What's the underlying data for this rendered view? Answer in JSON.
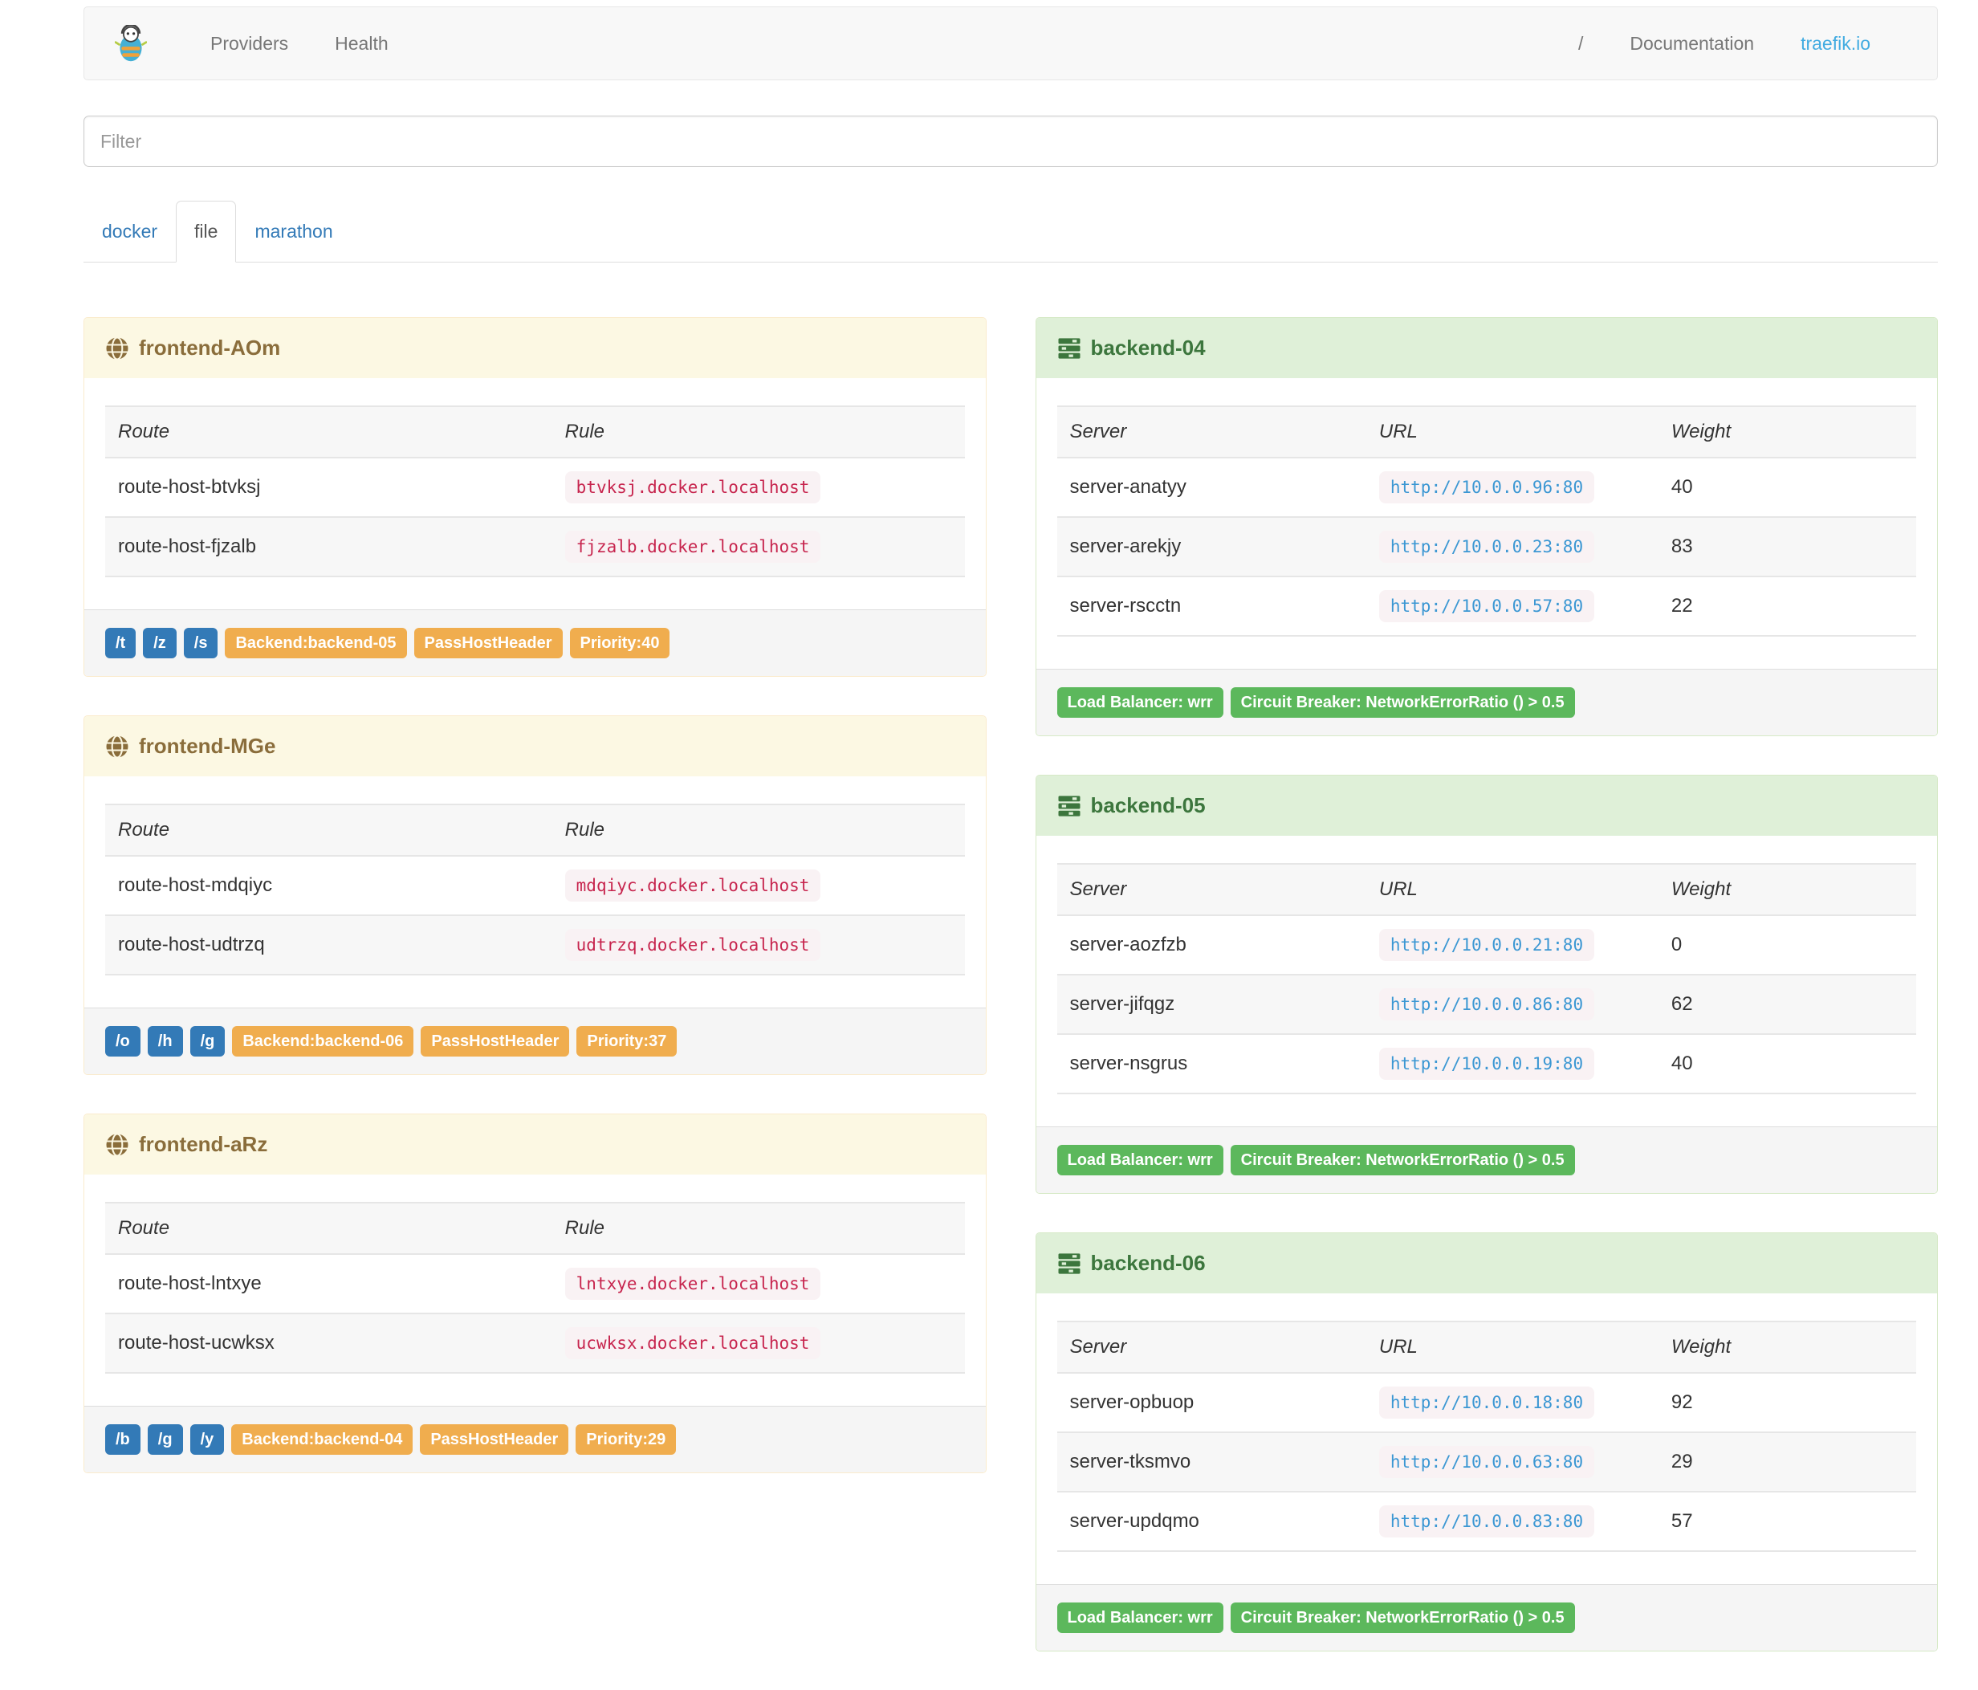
{
  "navbar": {
    "left_links": [
      "Providers",
      "Health"
    ],
    "right_links": [
      "/",
      "Documentation",
      "traefik.io"
    ]
  },
  "filter": {
    "placeholder": "Filter"
  },
  "tabs": [
    {
      "label": "docker",
      "active": false
    },
    {
      "label": "file",
      "active": true
    },
    {
      "label": "marathon",
      "active": false
    }
  ],
  "frontend_table_headers": [
    "Route",
    "Rule"
  ],
  "backend_table_headers": [
    "Server",
    "URL",
    "Weight"
  ],
  "frontends": [
    {
      "name": "frontend-AOm",
      "routes": [
        {
          "route": "route-host-btvksj",
          "rule": "btvksj.docker.localhost"
        },
        {
          "route": "route-host-fjzalb",
          "rule": "fjzalb.docker.localhost"
        }
      ],
      "entrypoints": [
        "/t",
        "/z",
        "/s"
      ],
      "tags": [
        "Backend:backend-05",
        "PassHostHeader",
        "Priority:40"
      ]
    },
    {
      "name": "frontend-MGe",
      "routes": [
        {
          "route": "route-host-mdqiyc",
          "rule": "mdqiyc.docker.localhost"
        },
        {
          "route": "route-host-udtrzq",
          "rule": "udtrzq.docker.localhost"
        }
      ],
      "entrypoints": [
        "/o",
        "/h",
        "/g"
      ],
      "tags": [
        "Backend:backend-06",
        "PassHostHeader",
        "Priority:37"
      ]
    },
    {
      "name": "frontend-aRz",
      "routes": [
        {
          "route": "route-host-lntxye",
          "rule": "lntxye.docker.localhost"
        },
        {
          "route": "route-host-ucwksx",
          "rule": "ucwksx.docker.localhost"
        }
      ],
      "entrypoints": [
        "/b",
        "/g",
        "/y"
      ],
      "tags": [
        "Backend:backend-04",
        "PassHostHeader",
        "Priority:29"
      ]
    }
  ],
  "backends": [
    {
      "name": "backend-04",
      "servers": [
        {
          "server": "server-anatyy",
          "url": "http://10.0.0.96:80",
          "weight": "40"
        },
        {
          "server": "server-arekjy",
          "url": "http://10.0.0.23:80",
          "weight": "83"
        },
        {
          "server": "server-rscctn",
          "url": "http://10.0.0.57:80",
          "weight": "22"
        }
      ],
      "tags": [
        "Load Balancer: wrr",
        "Circuit Breaker: NetworkErrorRatio () > 0.5"
      ]
    },
    {
      "name": "backend-05",
      "servers": [
        {
          "server": "server-aozfzb",
          "url": "http://10.0.0.21:80",
          "weight": "0"
        },
        {
          "server": "server-jifqgz",
          "url": "http://10.0.0.86:80",
          "weight": "62"
        },
        {
          "server": "server-nsgrus",
          "url": "http://10.0.0.19:80",
          "weight": "40"
        }
      ],
      "tags": [
        "Load Balancer: wrr",
        "Circuit Breaker: NetworkErrorRatio () > 0.5"
      ]
    },
    {
      "name": "backend-06",
      "servers": [
        {
          "server": "server-opbuop",
          "url": "http://10.0.0.18:80",
          "weight": "92"
        },
        {
          "server": "server-tksmvo",
          "url": "http://10.0.0.63:80",
          "weight": "29"
        },
        {
          "server": "server-updqmo",
          "url": "http://10.0.0.83:80",
          "weight": "57"
        }
      ],
      "tags": [
        "Load Balancer: wrr",
        "Circuit Breaker: NetworkErrorRatio () > 0.5"
      ]
    }
  ],
  "colors": {
    "link": "#337ab7",
    "accent_link": "#41abe1",
    "primary_badge": "#337ab7",
    "warning_badge": "#f0ad4e",
    "success_badge": "#5cb85c",
    "warning_panel_bg": "#fcf8e3",
    "warning_panel_border": "#faebcc",
    "warning_panel_text": "#8a6d3b",
    "success_panel_bg": "#dff0d8",
    "success_panel_border": "#d6e9c6",
    "success_panel_text": "#3c763d",
    "code_text": "#c7254e",
    "code_bg": "#f9f2f4",
    "url_text": "#3b97d3"
  }
}
